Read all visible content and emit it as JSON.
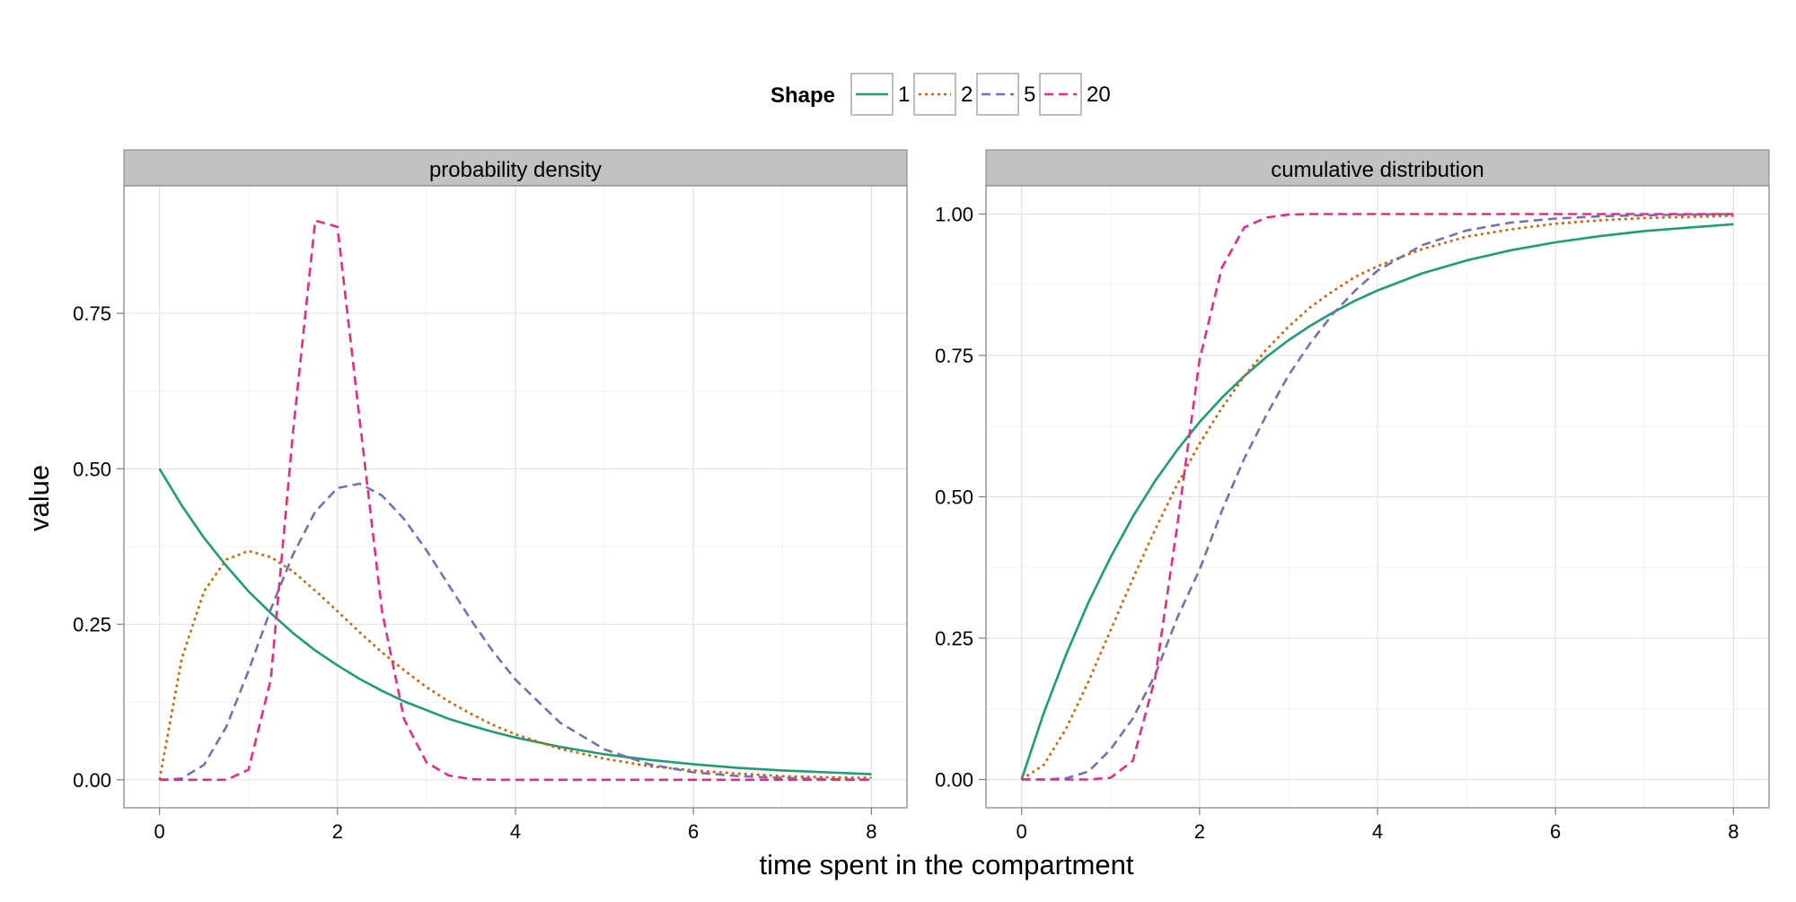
{
  "chart_data": {
    "type": "line",
    "xlabel": "time spent in the compartment",
    "ylabel": "value",
    "legend": {
      "title": "Shape",
      "placement": "top"
    },
    "grid": true,
    "series": [
      {
        "name": "1",
        "color": "#1b9e77",
        "dash": "solid"
      },
      {
        "name": "2",
        "color": "#d95f02",
        "dash": "dotted"
      },
      {
        "name": "5",
        "color": "#7570b3",
        "dash": "dashed"
      },
      {
        "name": "20",
        "color": "#e7298a",
        "dash": "dashed"
      }
    ],
    "panels": [
      {
        "title": "probability density",
        "xlim": [
          -0.4,
          8.4
        ],
        "ylim": [
          -0.045,
          0.955
        ],
        "xticks": [
          0,
          2,
          4,
          6,
          8
        ],
        "xtick_labels": [
          "0",
          "2",
          "4",
          "6",
          "8"
        ],
        "yticks": [
          0,
          0.25,
          0.5,
          0.75
        ],
        "ytick_labels": [
          "0.00",
          "0.25",
          "0.50",
          "0.75"
        ],
        "x": [
          0,
          0.25,
          0.5,
          0.75,
          1,
          1.25,
          1.5,
          1.75,
          2,
          2.25,
          2.5,
          2.75,
          3,
          3.25,
          3.5,
          3.75,
          4,
          4.5,
          5,
          5.5,
          6,
          6.5,
          7,
          7.5,
          8
        ],
        "series_values": {
          "1": [
            0.5,
            0.441,
            0.389,
            0.344,
            0.303,
            0.268,
            0.236,
            0.208,
            0.184,
            0.162,
            0.143,
            0.126,
            0.112,
            0.098,
            0.087,
            0.077,
            0.068,
            0.053,
            0.041,
            0.032,
            0.025,
            0.019,
            0.015,
            0.012,
            0.009
          ],
          "2": [
            0,
            0.195,
            0.303,
            0.354,
            0.368,
            0.358,
            0.335,
            0.304,
            0.271,
            0.237,
            0.205,
            0.176,
            0.149,
            0.126,
            0.106,
            0.088,
            0.073,
            0.05,
            0.034,
            0.022,
            0.015,
            0.01,
            0.006,
            0.004,
            0.003
          ],
          "5": [
            0,
            0.002,
            0.024,
            0.085,
            0.175,
            0.274,
            0.362,
            0.431,
            0.469,
            0.476,
            0.457,
            0.419,
            0.369,
            0.313,
            0.257,
            0.206,
            0.161,
            0.092,
            0.049,
            0.025,
            0.012,
            0.006,
            0.003,
            0.001,
            0.0
          ],
          "20": [
            0,
            0,
            0,
            0,
            0.016,
            0.161,
            0.559,
            0.899,
            0.889,
            0.578,
            0.271,
            0.097,
            0.028,
            0.007,
            0.001,
            0,
            0,
            0,
            0,
            0,
            0,
            0,
            0,
            0,
            0
          ]
        }
      },
      {
        "title": "cumulative distribution",
        "xlim": [
          -0.4,
          8.4
        ],
        "ylim": [
          -0.05,
          1.05
        ],
        "xticks": [
          0,
          2,
          4,
          6,
          8
        ],
        "xtick_labels": [
          "0",
          "2",
          "4",
          "6",
          "8"
        ],
        "yticks": [
          0,
          0.25,
          0.5,
          0.75,
          1.0
        ],
        "ytick_labels": [
          "0.00",
          "0.25",
          "0.50",
          "0.75",
          "1.00"
        ],
        "x": [
          0,
          0.25,
          0.5,
          0.75,
          1,
          1.25,
          1.5,
          1.75,
          2,
          2.25,
          2.5,
          2.75,
          3,
          3.25,
          3.5,
          3.75,
          4,
          4.5,
          5,
          5.5,
          6,
          6.5,
          7,
          7.5,
          8
        ],
        "series_values": {
          "1": [
            0,
            0.118,
            0.221,
            0.313,
            0.393,
            0.465,
            0.528,
            0.583,
            0.632,
            0.675,
            0.713,
            0.747,
            0.777,
            0.803,
            0.826,
            0.847,
            0.865,
            0.895,
            0.918,
            0.936,
            0.95,
            0.961,
            0.97,
            0.976,
            0.982
          ],
          "2": [
            0,
            0.026,
            0.09,
            0.173,
            0.264,
            0.355,
            0.442,
            0.522,
            0.594,
            0.657,
            0.713,
            0.76,
            0.801,
            0.836,
            0.864,
            0.889,
            0.908,
            0.938,
            0.96,
            0.973,
            0.983,
            0.989,
            0.993,
            0.995,
            0.997
          ],
          "5": [
            0,
            0.0,
            0.002,
            0.014,
            0.053,
            0.108,
            0.185,
            0.286,
            0.371,
            0.475,
            0.567,
            0.644,
            0.715,
            0.773,
            0.824,
            0.865,
            0.9,
            0.945,
            0.971,
            0.985,
            0.992,
            0.996,
            0.998,
            0.999,
            1.0
          ],
          "20": [
            0,
            0,
            0,
            0,
            0.003,
            0.033,
            0.179,
            0.449,
            0.742,
            0.905,
            0.976,
            0.994,
            0.999,
            1.0,
            1.0,
            1.0,
            1.0,
            1.0,
            1.0,
            1.0,
            1.0,
            1.0,
            1.0,
            1.0,
            1.0
          ]
        }
      }
    ]
  }
}
